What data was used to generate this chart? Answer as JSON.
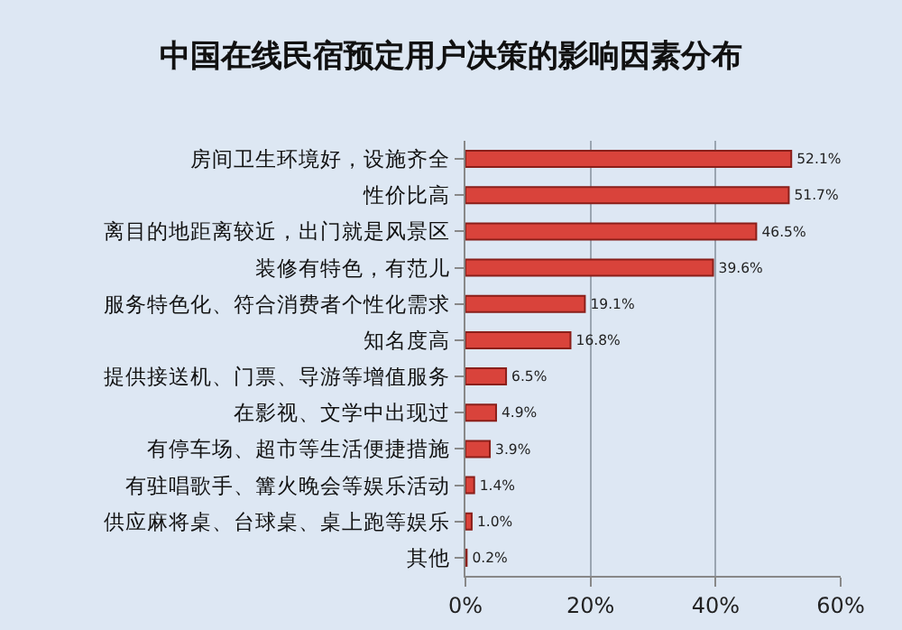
{
  "chart_data": {
    "type": "bar",
    "orientation": "horizontal",
    "title": "中国在线民宿预定用户决策的影响因素分布",
    "categories": [
      "房间卫生环境好，设施齐全",
      "性价比高",
      "离目的地距离较近，出门就是风景区",
      "装修有特色，有范儿",
      "服务特色化、符合消费者个性化需求",
      "知名度高",
      "提供接送机、门票、导游等增值服务",
      "在影视、文学中出现过",
      "有停车场、超市等生活便捷措施",
      "有驻唱歌手、篝火晚会等娱乐活动",
      "供应麻将桌、台球桌、桌上跑等娱乐",
      "其他"
    ],
    "values": [
      52.1,
      51.7,
      46.5,
      39.6,
      19.1,
      16.8,
      6.5,
      4.9,
      3.9,
      1.4,
      1.0,
      0.2
    ],
    "value_labels": [
      "52.1%",
      "51.7%",
      "46.5%",
      "39.6%",
      "19.1%",
      "16.8%",
      "6.5%",
      "4.9%",
      "3.9%",
      "1.4%",
      "1.0%",
      "0.2%"
    ],
    "color": "#d9433b",
    "xlim": [
      0,
      60
    ],
    "xticks": [
      {
        "value": 0,
        "label": "0%"
      },
      {
        "value": 20,
        "label": "20%"
      },
      {
        "value": 40,
        "label": "40%"
      },
      {
        "value": 60,
        "label": "60%"
      }
    ],
    "grid": "x"
  }
}
